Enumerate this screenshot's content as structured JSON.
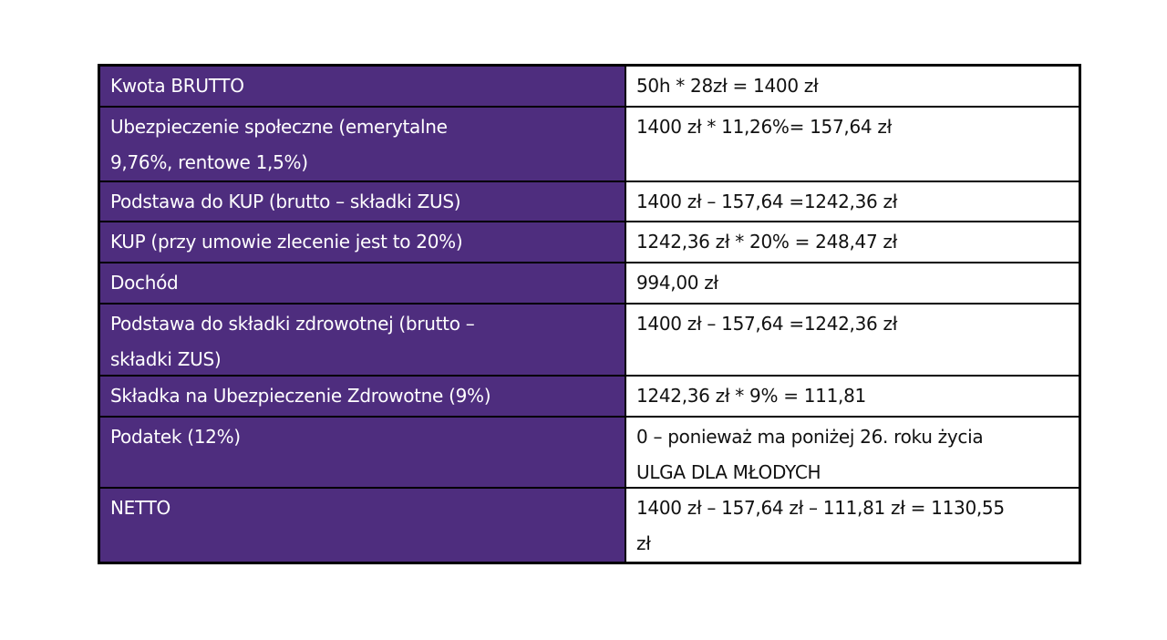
{
  "page": {
    "background_color": "#ffffff"
  },
  "table": {
    "description": "Polish payroll calculation table (umowa zlecenie, ulga dla mlodych)",
    "colors": {
      "label_background": "#4E2D7E",
      "label_text": "#ffffff",
      "value_background": "#ffffff",
      "value_text": "#111111",
      "border": "#000000"
    },
    "rows": [
      {
        "label": "Kwota BRUTTO",
        "value": "50h * 28zł = 1400 zł"
      },
      {
        "label": "Ubezpieczenie społeczne (emerytalne\n9,76%, rentowe 1,5%)",
        "value": "1400 zł * 11,26%= 157,64 zł"
      },
      {
        "label": "Podstawa do KUP (brutto – składki ZUS)",
        "value": "1400 zł – 157,64 =1242,36 zł"
      },
      {
        "label": "KUP (przy umowie zlecenie jest to 20%)",
        "value": "1242,36 zł * 20% = 248,47 zł"
      },
      {
        "label": "Dochód",
        "value": "994,00 zł"
      },
      {
        "label": "Podstawa do składki zdrowotnej (brutto –\nskładki ZUS)",
        "value": "1400 zł – 157,64 =1242,36 zł"
      },
      {
        "label": "Składka na Ubezpieczenie Zdrowotne (9%)",
        "value": "1242,36 zł * 9% = 111,81"
      },
      {
        "label": "Podatek (12%)",
        "value": "0 – ponieważ ma poniżej 26. roku życia\nULGA DLA MŁODYCH"
      },
      {
        "label": "NETTO",
        "value": "1400 zł – 157,64 zł – 111,81 zł  = 1130,55\nzł"
      }
    ]
  }
}
